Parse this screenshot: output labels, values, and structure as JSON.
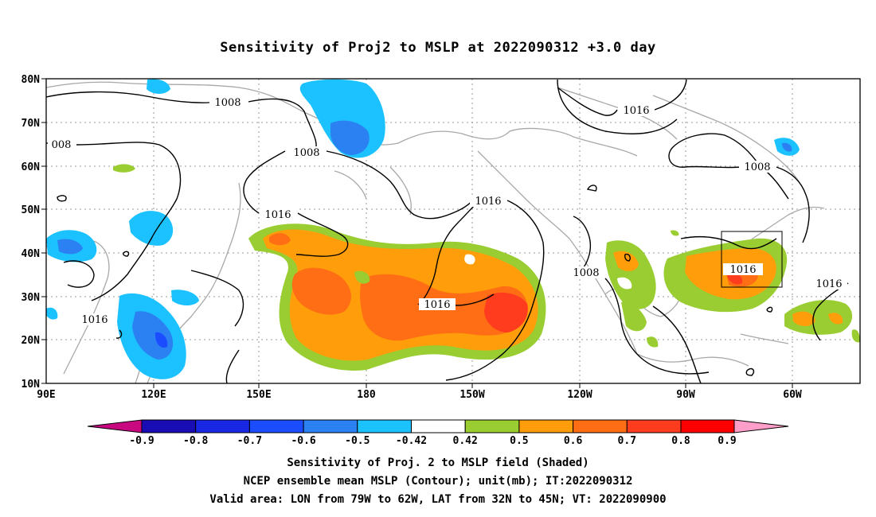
{
  "title": "Sensitivity of Proj2 to MSLP at 2022090312 +3.0 day",
  "map": {
    "lat_ticks": [
      "80N",
      "70N",
      "60N",
      "50N",
      "40N",
      "30N",
      "20N",
      "10N"
    ],
    "lon_ticks": [
      "90E",
      "120E",
      "150E",
      "180",
      "150W",
      "120W",
      "90W",
      "60W"
    ],
    "lon_range": [
      90,
      315
    ],
    "lat_range": [
      10,
      80
    ],
    "valid_box": {
      "lon": [
        281,
        298
      ],
      "lat": [
        32,
        45
      ]
    },
    "contour_labels": [
      "1008",
      "1008",
      "008",
      "1008",
      "1016",
      "1016",
      "1016",
      "1016",
      "1008",
      "1016",
      "1016",
      "1008",
      "1016"
    ],
    "colors": {
      "neg_09": "#c8087e",
      "neg_08": "#1a0cb4",
      "neg_07": "#1a28e6",
      "neg_06": "#1c4cff",
      "neg_05": "#2b80f2",
      "neg_042": "#1cc2ff",
      "neutral": "#ffffff",
      "pos_042": "#9acd32",
      "pos_05": "#ff9e0a",
      "pos_06": "#ff6e14",
      "pos_07": "#ff3c1e",
      "pos_08": "#ff0000",
      "pos_09": "#ff9ec8",
      "coast": "#a8a8a8",
      "contour": "#000000"
    }
  },
  "colorbar": {
    "labels": [
      "-0.9",
      "-0.8",
      "-0.7",
      "-0.6",
      "-0.5",
      "-0.42",
      "0.42",
      "0.5",
      "0.6",
      "0.7",
      "0.8",
      "0.9"
    ]
  },
  "caption": {
    "line1": "Sensitivity of Proj. 2 to MSLP field (Shaded)",
    "line2": "NCEP ensemble mean MSLP (Contour); unit(mb); IT:2022090312",
    "line3": "Valid area: LON from 79W to 62W, LAT from 32N to 45N; VT: 2022090900"
  }
}
